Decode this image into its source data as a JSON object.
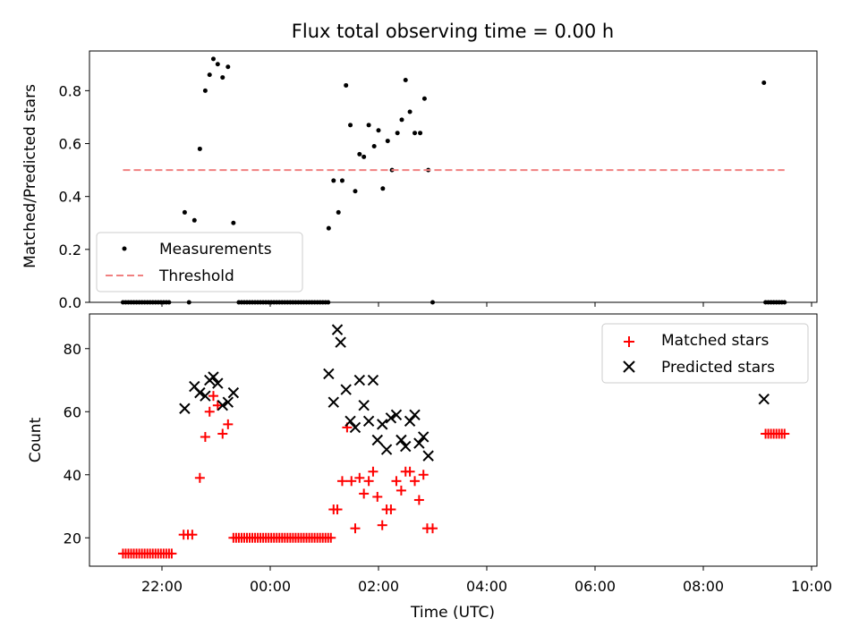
{
  "chart_data": {
    "type": "scatter",
    "title": "Flux total observing time = 0.00 h",
    "xlabel": "Time (UTC)",
    "x_tick_labels": [
      "22:00",
      "00:00",
      "02:00",
      "04:00",
      "06:00",
      "08:00",
      "10:00"
    ],
    "panels": [
      {
        "id": "ratio",
        "ylabel": "Matched/Predicted stars",
        "ylim": [
          0,
          0.95
        ],
        "y_ticks": [
          "0.0",
          "0.2",
          "0.4",
          "0.6",
          "0.8"
        ],
        "legend_placement": "lower-left",
        "series": [
          {
            "name": "Measurements",
            "color": "#000000",
            "marker": "dot",
            "points": [
              [
                21.28,
                0
              ],
              [
                21.33,
                0
              ],
              [
                21.38,
                0
              ],
              [
                21.43,
                0
              ],
              [
                21.48,
                0
              ],
              [
                21.53,
                0
              ],
              [
                21.58,
                0
              ],
              [
                21.63,
                0
              ],
              [
                21.68,
                0
              ],
              [
                21.73,
                0
              ],
              [
                21.78,
                0
              ],
              [
                21.83,
                0
              ],
              [
                21.88,
                0
              ],
              [
                21.93,
                0
              ],
              [
                21.98,
                0
              ],
              [
                22.03,
                0
              ],
              [
                22.08,
                0
              ],
              [
                22.13,
                0
              ],
              [
                22.42,
                0.34
              ],
              [
                22.5,
                0.0
              ],
              [
                22.6,
                0.31
              ],
              [
                22.7,
                0.58
              ],
              [
                22.8,
                0.8
              ],
              [
                22.88,
                0.86
              ],
              [
                22.95,
                0.92
              ],
              [
                23.03,
                0.9
              ],
              [
                23.12,
                0.85
              ],
              [
                23.22,
                0.89
              ],
              [
                23.32,
                0.3
              ],
              [
                23.42,
                0
              ],
              [
                23.47,
                0
              ],
              [
                23.52,
                0
              ],
              [
                23.57,
                0
              ],
              [
                23.62,
                0
              ],
              [
                23.67,
                0
              ],
              [
                23.72,
                0
              ],
              [
                23.77,
                0
              ],
              [
                23.82,
                0
              ],
              [
                23.87,
                0
              ],
              [
                23.92,
                0
              ],
              [
                23.97,
                0
              ],
              [
                24.02,
                0
              ],
              [
                24.07,
                0
              ],
              [
                24.12,
                0
              ],
              [
                24.17,
                0
              ],
              [
                24.22,
                0
              ],
              [
                24.27,
                0
              ],
              [
                24.32,
                0
              ],
              [
                24.37,
                0
              ],
              [
                24.42,
                0
              ],
              [
                24.47,
                0
              ],
              [
                24.52,
                0
              ],
              [
                24.57,
                0
              ],
              [
                24.62,
                0
              ],
              [
                24.67,
                0
              ],
              [
                24.72,
                0
              ],
              [
                24.77,
                0
              ],
              [
                24.82,
                0
              ],
              [
                24.87,
                0
              ],
              [
                24.92,
                0
              ],
              [
                24.97,
                0
              ],
              [
                25.02,
                0
              ],
              [
                25.07,
                0
              ],
              [
                25.08,
                0.28
              ],
              [
                25.17,
                0.46
              ],
              [
                25.26,
                0.34
              ],
              [
                25.33,
                0.46
              ],
              [
                25.4,
                0.82
              ],
              [
                25.48,
                0.67
              ],
              [
                25.57,
                0.42
              ],
              [
                25.65,
                0.56
              ],
              [
                25.73,
                0.55
              ],
              [
                25.82,
                0.67
              ],
              [
                25.92,
                0.59
              ],
              [
                26.0,
                0.65
              ],
              [
                26.08,
                0.43
              ],
              [
                26.17,
                0.61
              ],
              [
                26.25,
                0.5
              ],
              [
                26.35,
                0.64
              ],
              [
                26.43,
                0.69
              ],
              [
                26.5,
                0.84
              ],
              [
                26.58,
                0.72
              ],
              [
                26.67,
                0.64
              ],
              [
                26.77,
                0.64
              ],
              [
                26.85,
                0.77
              ],
              [
                26.92,
                0.5
              ],
              [
                27.0,
                0
              ],
              [
                33.12,
                0.83
              ],
              [
                33.15,
                0
              ],
              [
                33.2,
                0
              ],
              [
                33.25,
                0
              ],
              [
                33.3,
                0
              ],
              [
                33.35,
                0
              ],
              [
                33.4,
                0
              ],
              [
                33.45,
                0
              ],
              [
                33.5,
                0
              ]
            ]
          },
          {
            "name": "Threshold",
            "color": "#f08080",
            "style": "dashed",
            "points": [
              [
                21.28,
                0.5
              ],
              [
                33.5,
                0.5
              ]
            ]
          }
        ]
      },
      {
        "id": "counts",
        "ylabel": "Count",
        "ylim": [
          11,
          91
        ],
        "y_ticks": [
          "20",
          "40",
          "60",
          "80"
        ],
        "legend_placement": "upper-right",
        "series": [
          {
            "name": "Matched stars",
            "color": "#ff0000",
            "marker": "plus",
            "points": [
              [
                21.28,
                15
              ],
              [
                21.33,
                15
              ],
              [
                21.38,
                15
              ],
              [
                21.43,
                15
              ],
              [
                21.48,
                15
              ],
              [
                21.53,
                15
              ],
              [
                21.58,
                15
              ],
              [
                21.63,
                15
              ],
              [
                21.68,
                15
              ],
              [
                21.73,
                15
              ],
              [
                21.78,
                15
              ],
              [
                21.83,
                15
              ],
              [
                21.88,
                15
              ],
              [
                21.93,
                15
              ],
              [
                21.98,
                15
              ],
              [
                22.03,
                15
              ],
              [
                22.08,
                15
              ],
              [
                22.13,
                15
              ],
              [
                22.18,
                15
              ],
              [
                22.4,
                21
              ],
              [
                22.48,
                21
              ],
              [
                22.56,
                21
              ],
              [
                22.7,
                39
              ],
              [
                22.8,
                52
              ],
              [
                22.88,
                60
              ],
              [
                22.95,
                65
              ],
              [
                23.03,
                62
              ],
              [
                23.12,
                53
              ],
              [
                23.22,
                56
              ],
              [
                23.32,
                20
              ],
              [
                23.37,
                20
              ],
              [
                23.42,
                20
              ],
              [
                23.47,
                20
              ],
              [
                23.52,
                20
              ],
              [
                23.57,
                20
              ],
              [
                23.62,
                20
              ],
              [
                23.67,
                20
              ],
              [
                23.72,
                20
              ],
              [
                23.77,
                20
              ],
              [
                23.82,
                20
              ],
              [
                23.87,
                20
              ],
              [
                23.92,
                20
              ],
              [
                23.97,
                20
              ],
              [
                24.02,
                20
              ],
              [
                24.07,
                20
              ],
              [
                24.12,
                20
              ],
              [
                24.17,
                20
              ],
              [
                24.22,
                20
              ],
              [
                24.27,
                20
              ],
              [
                24.32,
                20
              ],
              [
                24.37,
                20
              ],
              [
                24.42,
                20
              ],
              [
                24.47,
                20
              ],
              [
                24.52,
                20
              ],
              [
                24.57,
                20
              ],
              [
                24.62,
                20
              ],
              [
                24.67,
                20
              ],
              [
                24.72,
                20
              ],
              [
                24.77,
                20
              ],
              [
                24.82,
                20
              ],
              [
                24.87,
                20
              ],
              [
                24.92,
                20
              ],
              [
                24.97,
                20
              ],
              [
                25.02,
                20
              ],
              [
                25.07,
                20
              ],
              [
                25.12,
                20
              ],
              [
                25.17,
                29
              ],
              [
                25.24,
                29
              ],
              [
                25.33,
                38
              ],
              [
                25.42,
                55
              ],
              [
                25.5,
                38
              ],
              [
                25.57,
                23
              ],
              [
                25.65,
                39
              ],
              [
                25.73,
                34
              ],
              [
                25.82,
                38
              ],
              [
                25.9,
                41
              ],
              [
                25.98,
                33
              ],
              [
                26.07,
                24
              ],
              [
                26.15,
                29
              ],
              [
                26.23,
                29
              ],
              [
                26.33,
                38
              ],
              [
                26.42,
                35
              ],
              [
                26.5,
                41
              ],
              [
                26.58,
                41
              ],
              [
                26.67,
                38
              ],
              [
                26.75,
                32
              ],
              [
                26.83,
                40
              ],
              [
                26.9,
                23
              ],
              [
                27.0,
                23
              ],
              [
                33.15,
                53
              ],
              [
                33.2,
                53
              ],
              [
                33.25,
                53
              ],
              [
                33.3,
                53
              ],
              [
                33.35,
                53
              ],
              [
                33.4,
                53
              ],
              [
                33.45,
                53
              ],
              [
                33.5,
                53
              ]
            ]
          },
          {
            "name": "Predicted stars",
            "color": "#000000",
            "marker": "x",
            "points": [
              [
                22.42,
                61
              ],
              [
                22.6,
                68
              ],
              [
                22.7,
                66
              ],
              [
                22.8,
                65
              ],
              [
                22.88,
                70
              ],
              [
                22.95,
                71
              ],
              [
                23.03,
                69
              ],
              [
                23.12,
                62
              ],
              [
                23.22,
                63
              ],
              [
                23.32,
                66
              ],
              [
                25.08,
                72
              ],
              [
                25.17,
                63
              ],
              [
                25.24,
                86
              ],
              [
                25.3,
                82
              ],
              [
                25.4,
                67
              ],
              [
                25.48,
                57
              ],
              [
                25.57,
                55
              ],
              [
                25.65,
                70
              ],
              [
                25.73,
                62
              ],
              [
                25.82,
                57
              ],
              [
                25.9,
                70
              ],
              [
                25.98,
                51
              ],
              [
                26.07,
                56
              ],
              [
                26.15,
                48
              ],
              [
                26.23,
                58
              ],
              [
                26.33,
                59
              ],
              [
                26.42,
                51
              ],
              [
                26.5,
                49
              ],
              [
                26.58,
                57
              ],
              [
                26.67,
                59
              ],
              [
                26.75,
                50
              ],
              [
                26.83,
                52
              ],
              [
                26.92,
                46
              ],
              [
                33.12,
                64
              ]
            ]
          }
        ]
      }
    ]
  }
}
